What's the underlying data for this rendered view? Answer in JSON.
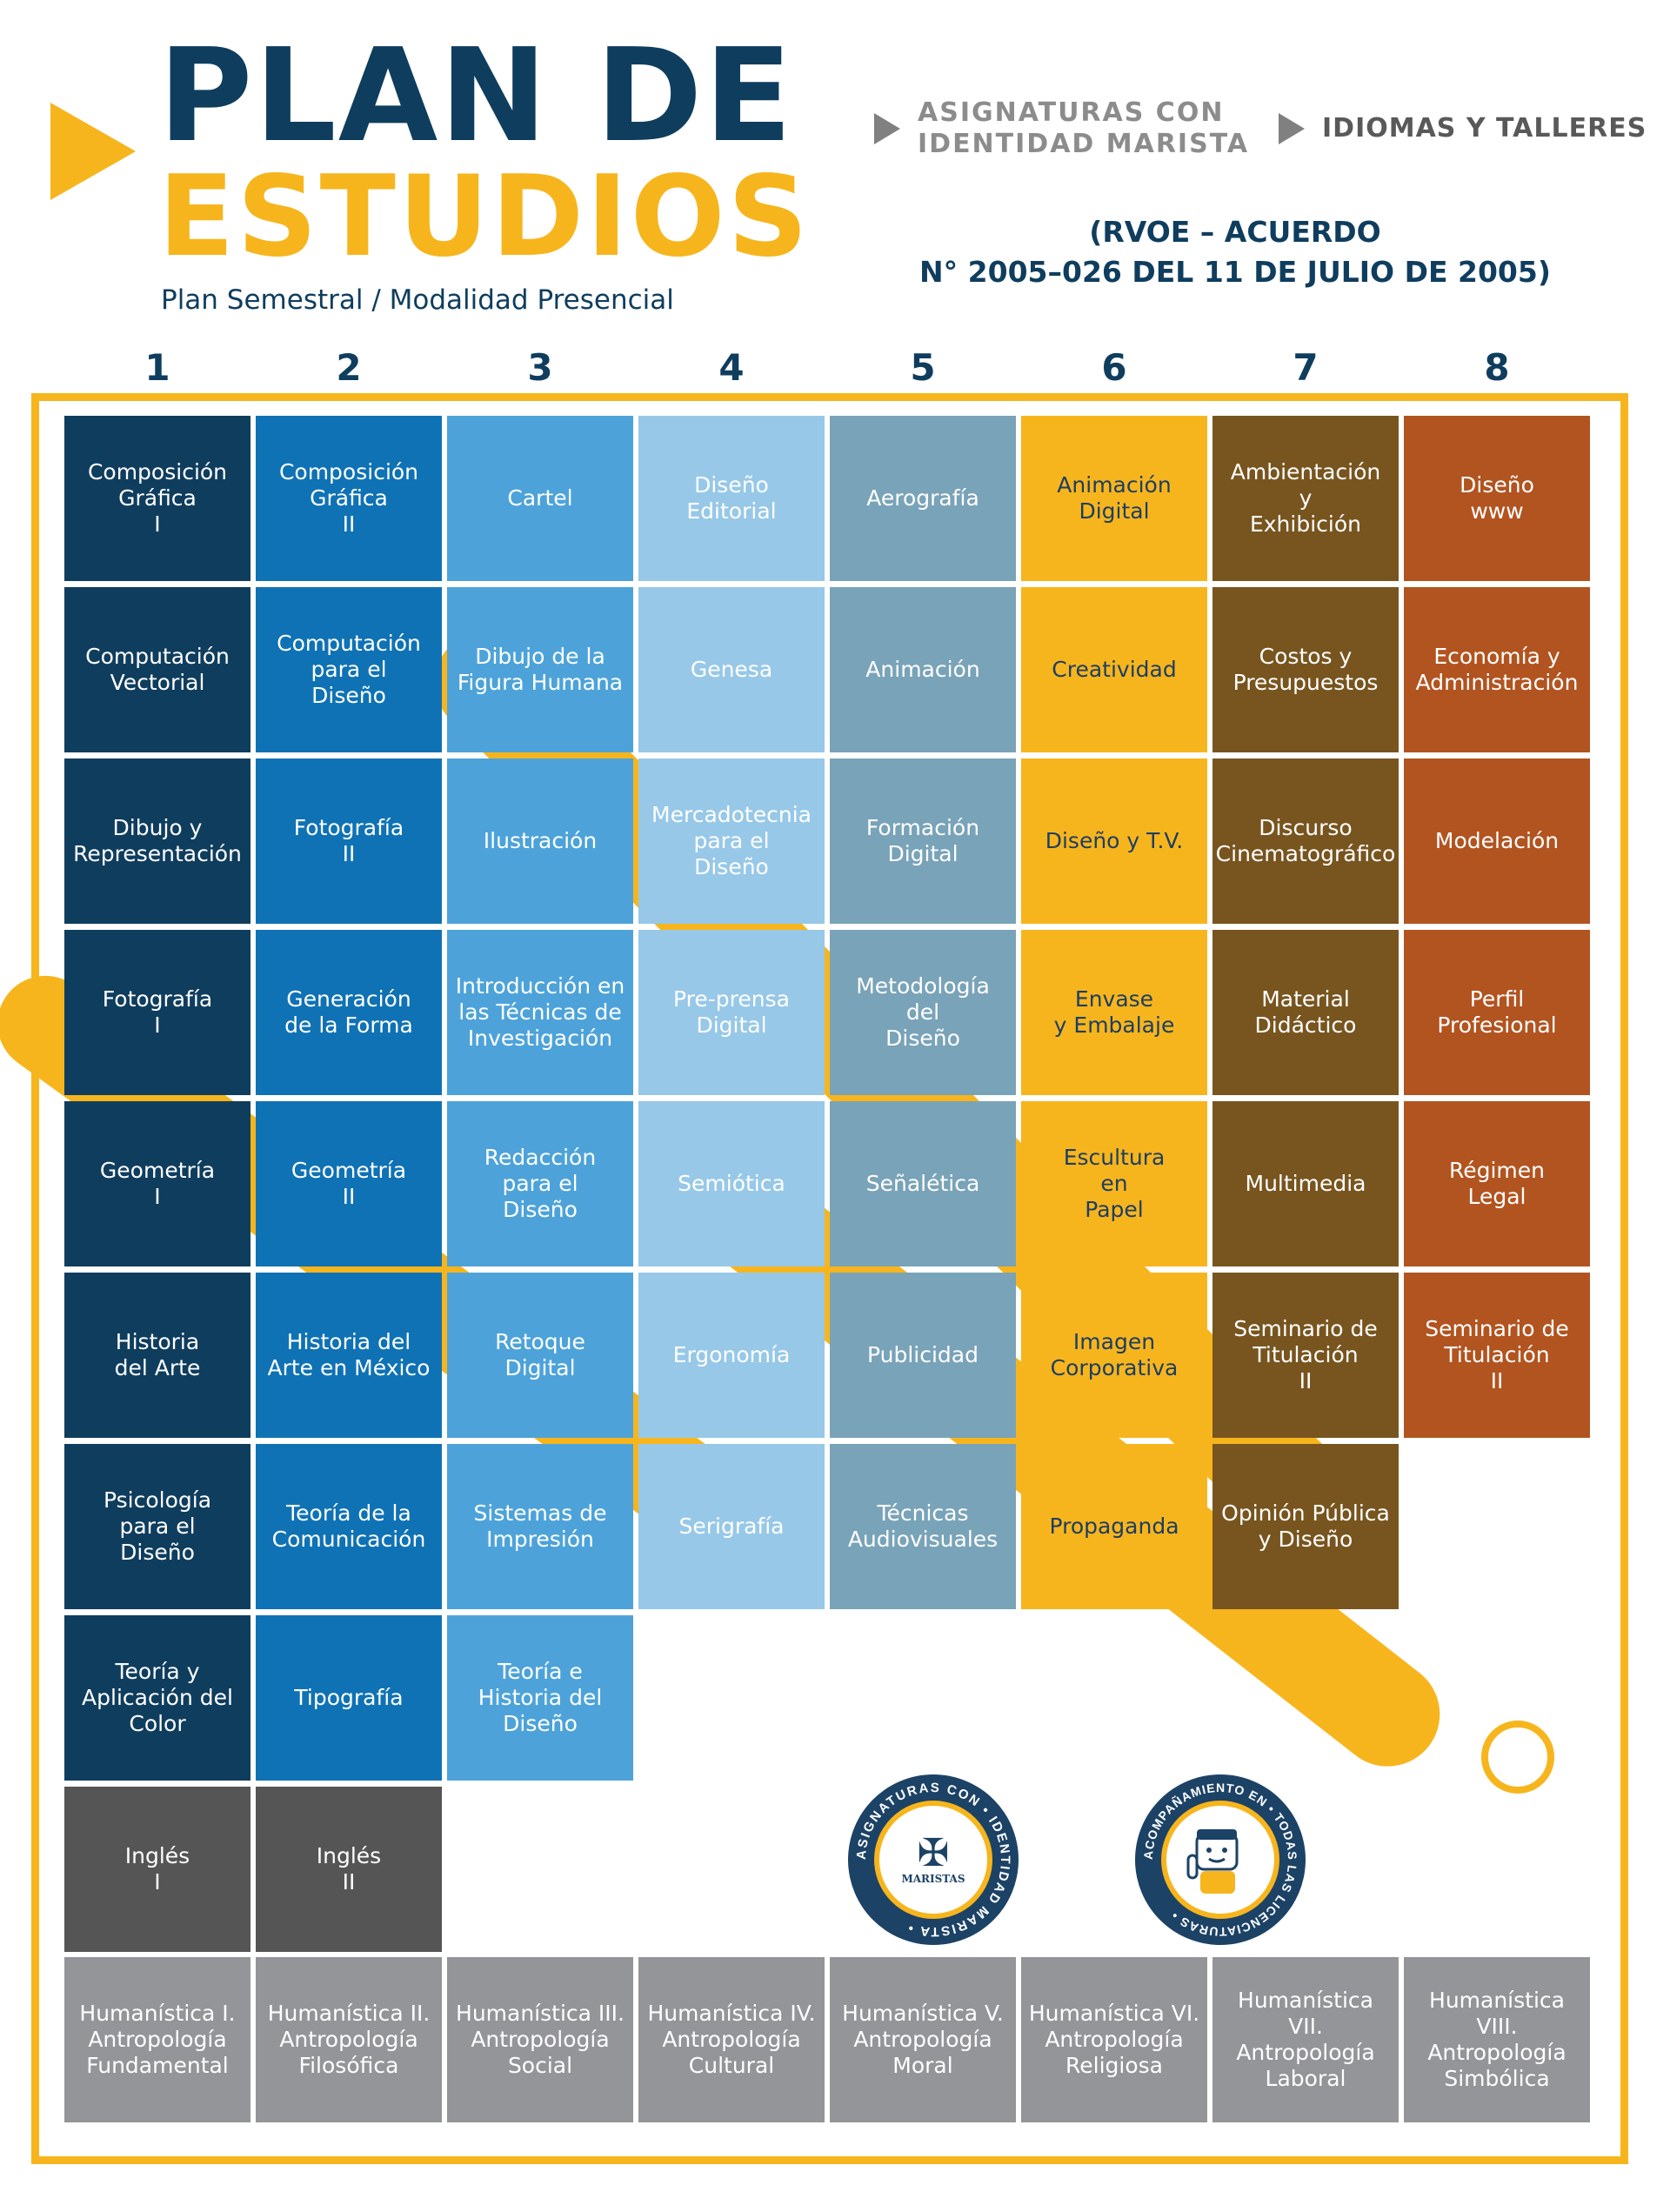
{
  "header": {
    "title_line1": "PLAN DE",
    "title_line2": "ESTUDIOS",
    "subtitle": "Plan Semestral / Modalidad Presencial",
    "rvoe": "(RVOE – ACUERDO\nN° 2005–026 DEL 11 DE JULIO DE 2005)"
  },
  "legend": {
    "item1": "ASIGNATURAS CON\nIDENTIDAD MARISTA",
    "item2": "IDIOMAS Y TALLERES",
    "arrow_icon": "play-triangle-icon"
  },
  "semesters": [
    "1",
    "2",
    "3",
    "4",
    "5",
    "6",
    "7",
    "8"
  ],
  "colors": {
    "sem1": "#0f3d5e",
    "sem2": "#0f72b5",
    "sem3": "#4da3d9",
    "sem4": "#97c8e8",
    "sem5": "#79a3b8",
    "sem6": "#f7b51d",
    "sem7": "#78551f",
    "sem8": "#b25420",
    "languages": "#555555",
    "humanities": "#939598",
    "accent": "#f7b51d",
    "navy": "#0f3d5e"
  },
  "columns": [
    [
      "Composición\nGráfica\nI",
      "Computación\nVectorial",
      "Dibujo y\nRepresentación",
      "Fotografía\nI",
      "Geometría\nI",
      "Historia\ndel Arte",
      "Psicología\npara el\nDiseño",
      "Teoría y\nAplicación del\nColor"
    ],
    [
      "Composición\nGráfica\nII",
      "Computación\npara el\nDiseño",
      "Fotografía\nII",
      "Generación\nde la Forma",
      "Geometría\nII",
      "Historia del\nArte en México",
      "Teoría de la\nComunicación",
      "Tipografía"
    ],
    [
      "Cartel",
      "Dibujo de la\nFigura Humana",
      "Ilustración",
      "Introducción en\nlas Técnicas de\nInvestigación",
      "Redacción\npara el\nDiseño",
      "Retoque\nDigital",
      "Sistemas de\nImpresión",
      "Teoría e\nHistoria del\nDiseño"
    ],
    [
      "Diseño\nEditorial",
      "Genesa",
      "Mercadotecnia\npara el\nDiseño",
      "Pre-prensa\nDigital",
      "Semiótica",
      "Ergonomía",
      "Serigrafía"
    ],
    [
      "Aerografía",
      "Animación",
      "Formación\nDigital",
      "Metodología\ndel\nDiseño",
      "Señalética",
      "Publicidad",
      "Técnicas\nAudiovisuales"
    ],
    [
      "Animación\nDigital",
      "Creatividad",
      "Diseño y T.V.",
      "Envase\ny Embalaje",
      "Escultura\nen\nPapel",
      "Imagen\nCorporativa",
      "Propaganda"
    ],
    [
      "Ambientación\ny\nExhibición",
      "Costos y\nPresupuestos",
      "Discurso\nCinematográfico",
      "Material\nDidáctico",
      "Multimedia",
      "Seminario de\nTitulación\nII",
      "Opinión Pública\ny Diseño"
    ],
    [
      "Diseño\nwww",
      "Economía y\nAdministración",
      "Modelación",
      "Perfil\nProfesional",
      "Régimen\nLegal",
      "Seminario de\nTitulación\nII"
    ]
  ],
  "languages": [
    "Inglés\nI",
    "Inglés\nII"
  ],
  "humanities": [
    "Humanística I.\nAntropología\nFundamental",
    "Humanística II.\nAntropología\nFilosófica",
    "Humanística III.\nAntropología\nSocial",
    "Humanística IV.\nAntropología\nCultural",
    "Humanística V.\nAntropología\nMoral",
    "Humanística VI.\nAntropología\nReligiosa",
    "Humanística VII.\nAntropología\nLaboral",
    "Humanística VIII.\nAntropología\nSimbólica"
  ],
  "seals": {
    "seal1_ring": "ASIGNATURAS CON • IDENTIDAD MARISTA •",
    "seal1_center": "MARISTAS",
    "seal2_ring": "ACOMPAÑAMIENTO EN • TODAS LAS LICENCIATURAS •"
  }
}
